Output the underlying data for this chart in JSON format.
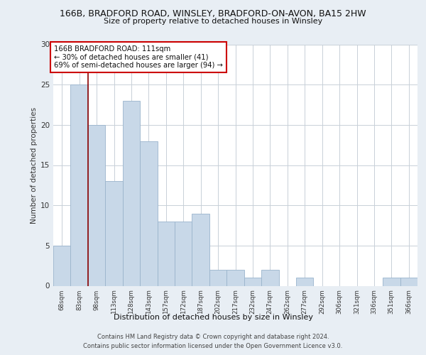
{
  "title1": "166B, BRADFORD ROAD, WINSLEY, BRADFORD-ON-AVON, BA15 2HW",
  "title2": "Size of property relative to detached houses in Winsley",
  "xlabel": "Distribution of detached houses by size in Winsley",
  "ylabel": "Number of detached properties",
  "categories": [
    "68sqm",
    "83sqm",
    "98sqm",
    "113sqm",
    "128sqm",
    "143sqm",
    "157sqm",
    "172sqm",
    "187sqm",
    "202sqm",
    "217sqm",
    "232sqm",
    "247sqm",
    "262sqm",
    "277sqm",
    "292sqm",
    "306sqm",
    "321sqm",
    "336sqm",
    "351sqm",
    "366sqm"
  ],
  "values": [
    5,
    25,
    20,
    13,
    23,
    18,
    8,
    8,
    9,
    2,
    2,
    1,
    2,
    0,
    1,
    0,
    0,
    0,
    0,
    1,
    1
  ],
  "bar_color": "#c8d8e8",
  "bar_edge_color": "#9ab4cc",
  "vline_x_idx": 2,
  "vline_color": "#8b0000",
  "annotation_text": "166B BRADFORD ROAD: 111sqm\n← 30% of detached houses are smaller (41)\n69% of semi-detached houses are larger (94) →",
  "annotation_box_color": "#ffffff",
  "annotation_box_edge": "#cc0000",
  "ylim": [
    0,
    30
  ],
  "yticks": [
    0,
    5,
    10,
    15,
    20,
    25,
    30
  ],
  "footer1": "Contains HM Land Registry data © Crown copyright and database right 2024.",
  "footer2": "Contains public sector information licensed under the Open Government Licence v3.0.",
  "bg_color": "#e8eef4",
  "plot_bg_color": "#ffffff",
  "grid_color": "#c8d0d8"
}
